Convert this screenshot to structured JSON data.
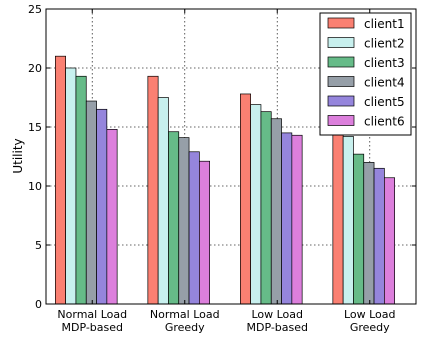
{
  "chart_data": {
    "type": "bar",
    "categories": [
      [
        "Normal Load",
        "MDP-based"
      ],
      [
        "Normal Load",
        "Greedy"
      ],
      [
        "Low Load",
        "MDP-based"
      ],
      [
        "Low Load",
        "Greedy"
      ]
    ],
    "ylabel": "Utility",
    "ylim": [
      0,
      25
    ],
    "yticks": [
      0,
      5,
      10,
      15,
      20,
      25
    ],
    "grid": true,
    "legend_position": "top-right",
    "series": [
      {
        "name": "client1",
        "color": "#fa8072",
        "values": [
          21.0,
          19.3,
          17.8,
          15.4
        ]
      },
      {
        "name": "client2",
        "color": "#c8f0ee",
        "values": [
          20.0,
          17.5,
          16.9,
          14.2
        ]
      },
      {
        "name": "client3",
        "color": "#66bb88",
        "values": [
          19.3,
          14.6,
          16.3,
          12.7
        ]
      },
      {
        "name": "client4",
        "color": "#969fa8",
        "values": [
          17.2,
          14.1,
          15.7,
          12.0
        ]
      },
      {
        "name": "client5",
        "color": "#9585dc",
        "values": [
          16.5,
          12.9,
          14.5,
          11.5
        ]
      },
      {
        "name": "client6",
        "color": "#dc7fdc",
        "values": [
          14.8,
          12.1,
          14.3,
          10.7
        ]
      }
    ]
  }
}
